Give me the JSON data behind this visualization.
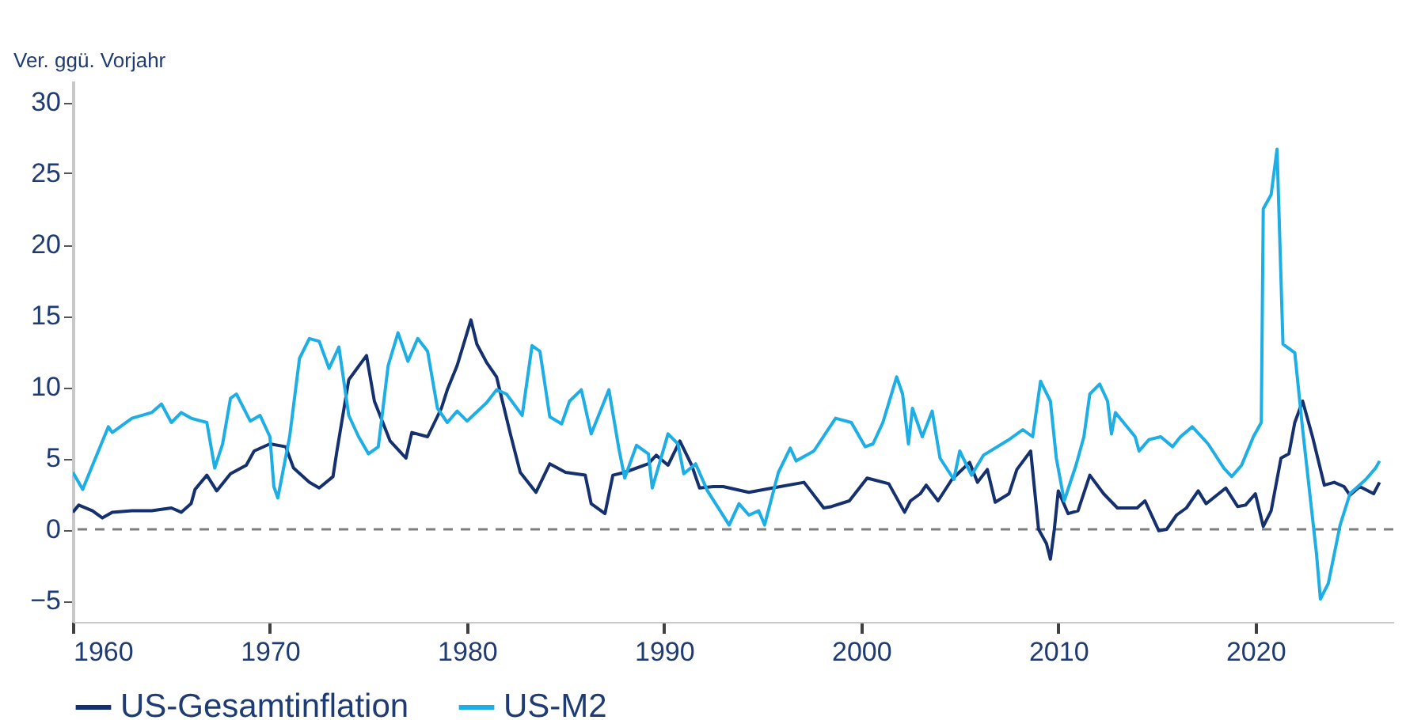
{
  "chart_data": {
    "type": "line",
    "ylabel": "Ver. ggü. Vorjahr",
    "xlim": [
      1960,
      2027
    ],
    "ylim": [
      -6.5,
      31.5
    ],
    "xticks": [
      1960,
      1970,
      1980,
      1990,
      2000,
      2010,
      2020
    ],
    "yticks": [
      -5,
      0,
      5,
      10,
      15,
      20,
      25,
      30
    ],
    "grid": false,
    "legend": "bottom",
    "line_style": "solid",
    "marker": "none",
    "ref_lines": [
      {
        "axis": "y",
        "value": 0,
        "color": "#7f7f7f",
        "line_style": "dashed"
      }
    ],
    "series": [
      {
        "name": "US-Gesamtinflation",
        "color": "#14306e",
        "x": [
          1960,
          1960.3,
          1961,
          1961.5,
          1962,
          1963,
          1964,
          1965,
          1965.5,
          1966,
          1966.2,
          1966.8,
          1967.3,
          1968,
          1968.8,
          1969.2,
          1970,
          1970.8,
          1971.2,
          1972,
          1972.5,
          1973.2,
          1973.4,
          1974,
          1974.9,
          1975.3,
          1976.1,
          1976.9,
          1977.2,
          1978,
          1978.7,
          1979,
          1979.5,
          1980.2,
          1980.5,
          1981,
          1981.5,
          1982.2,
          1982.7,
          1983.5,
          1984.2,
          1985,
          1986,
          1986.3,
          1987,
          1987.4,
          1988,
          1989.2,
          1989.6,
          1990.2,
          1990.8,
          1991.4,
          1991.8,
          1992.5,
          1993,
          1994.3,
          1995.5,
          1997.1,
          1998.1,
          1998.5,
          1999.4,
          2000.3,
          2001.4,
          2002.2,
          2002.5,
          2003,
          2003.3,
          2003.9,
          2004.6,
          2005.5,
          2005.9,
          2006.4,
          2006.8,
          2007.5,
          2007.9,
          2008.6,
          2009,
          2009.4,
          2009.6,
          2009.8,
          2010,
          2010.5,
          2011,
          2011.6,
          2012.3,
          2013,
          2014,
          2014.4,
          2015.1,
          2015.5,
          2016,
          2016.5,
          2017.1,
          2017.5,
          2018.5,
          2019.1,
          2019.5,
          2020,
          2020.4,
          2020.8,
          2021.3,
          2021.7,
          2022,
          2022.4,
          2022.9,
          2023.5,
          2024,
          2024.5,
          2024.8,
          2025.3,
          2026,
          2026.3
        ],
        "values": [
          1.2,
          1.7,
          1.3,
          0.8,
          1.2,
          1.3,
          1.3,
          1.5,
          1.2,
          1.8,
          2.8,
          3.8,
          2.7,
          3.9,
          4.5,
          5.5,
          6.0,
          5.8,
          4.3,
          3.3,
          2.9,
          3.7,
          5.5,
          10.5,
          12.2,
          9,
          6.2,
          5.0,
          6.8,
          6.5,
          8.5,
          9.8,
          11.5,
          14.7,
          13,
          11.7,
          10.7,
          6.7,
          4.0,
          2.6,
          4.6,
          4.0,
          3.8,
          1.8,
          1.1,
          3.8,
          4.0,
          4.6,
          5.2,
          4.5,
          6.2,
          4.5,
          2.9,
          3.0,
          3.0,
          2.6,
          2.9,
          3.3,
          1.5,
          1.6,
          2.0,
          3.6,
          3.2,
          1.2,
          2.0,
          2.5,
          3.1,
          2.0,
          3.5,
          4.7,
          3.3,
          4.2,
          1.9,
          2.5,
          4.2,
          5.5,
          0,
          -1.0,
          -2.1,
          0,
          2.7,
          1.1,
          1.3,
          3.8,
          2.5,
          1.5,
          1.5,
          2.0,
          -0.1,
          0.0,
          1.0,
          1.5,
          2.7,
          1.8,
          2.9,
          1.6,
          1.7,
          2.5,
          0.2,
          1.3,
          5.0,
          5.3,
          7.5,
          9.0,
          6.5,
          3.1,
          3.3,
          3.0,
          2.4,
          3.0,
          2.5,
          3.3
        ]
      },
      {
        "name": "US-M2",
        "color": "#1eaee6",
        "x": [
          1960,
          1960.5,
          1961,
          1961.8,
          1962,
          1963,
          1964,
          1964.5,
          1965,
          1965.5,
          1966,
          1966.8,
          1967.2,
          1967.6,
          1968,
          1968.3,
          1969,
          1969.5,
          1970,
          1970.2,
          1970.4,
          1971,
          1971.5,
          1972,
          1972.5,
          1973,
          1973.5,
          1974,
          1974.5,
          1975,
          1975.5,
          1976,
          1976.5,
          1977,
          1977.5,
          1978,
          1978.5,
          1979,
          1979.5,
          1980,
          1981,
          1981.5,
          1982,
          1982.8,
          1983.3,
          1983.7,
          1984.2,
          1984.8,
          1985.2,
          1985.8,
          1986.3,
          1987.2,
          1987.7,
          1988,
          1988.6,
          1989.2,
          1989.4,
          1990.2,
          1990.7,
          1991,
          1991.6,
          1992.2,
          1992.8,
          1993.3,
          1993.8,
          1994.3,
          1994.8,
          1995.1,
          1995.8,
          1996.4,
          1996.7,
          1997.6,
          1998.7,
          1999.5,
          2000.2,
          2000.6,
          2001.1,
          2001.8,
          2002.1,
          2002.4,
          2002.6,
          2003.1,
          2003.6,
          2004,
          2004.7,
          2005,
          2005.6,
          2006.2,
          2007.5,
          2008.2,
          2008.7,
          2009.1,
          2009.6,
          2009.9,
          2010.3,
          2010.9,
          2011.3,
          2011.6,
          2012.1,
          2012.5,
          2012.7,
          2012.9,
          2013.9,
          2014.1,
          2014.6,
          2015.2,
          2015.8,
          2016.2,
          2016.8,
          2017.6,
          2018.4,
          2018.8,
          2019.3,
          2019.9,
          2020.3,
          2020.4,
          2020.8,
          2021.1,
          2021.4,
          2021.6,
          2022,
          2022.4,
          2023.1,
          2023.3,
          2023.7,
          2024.3,
          2024.8,
          2025.6,
          2026.1,
          2026.3
        ],
        "values": [
          4,
          2.8,
          4.5,
          7.2,
          6.8,
          7.8,
          8.2,
          8.8,
          7.5,
          8.2,
          7.8,
          7.5,
          4.3,
          6,
          9.2,
          9.5,
          7.6,
          8,
          6.5,
          3,
          2.2,
          6.5,
          12,
          13.4,
          13.2,
          11.3,
          12.8,
          8,
          6.5,
          5.3,
          5.8,
          11.5,
          13.8,
          11.8,
          13.4,
          12.5,
          8.5,
          7.5,
          8.3,
          7.6,
          8.9,
          9.8,
          9.5,
          8,
          12.9,
          12.5,
          7.9,
          7.4,
          9.0,
          9.8,
          6.7,
          9.8,
          5.7,
          3.6,
          5.9,
          5.3,
          2.9,
          6.7,
          6,
          3.9,
          4.6,
          2.7,
          1.4,
          0.3,
          1.8,
          1.0,
          1.3,
          0.3,
          4.0,
          5.7,
          4.8,
          5.5,
          7.8,
          7.5,
          5.8,
          6,
          7.5,
          10.7,
          9.5,
          6.0,
          8.5,
          6.5,
          8.3,
          5.0,
          3.5,
          5.5,
          3.8,
          5.2,
          6.3,
          7.0,
          6.5,
          10.4,
          9,
          5,
          2.0,
          4.5,
          6.5,
          9.5,
          10.2,
          9,
          6.7,
          8.2,
          6.5,
          5.5,
          6.3,
          6.5,
          5.8,
          6.5,
          7.2,
          6.0,
          4.3,
          3.7,
          4.5,
          6.5,
          7.5,
          22.5,
          23.5,
          26.7,
          13,
          12.8,
          12.4,
          7,
          -1.7,
          -4.9,
          -3.8,
          0.3,
          2.5,
          3.5,
          4.3,
          4.8
        ]
      }
    ]
  }
}
